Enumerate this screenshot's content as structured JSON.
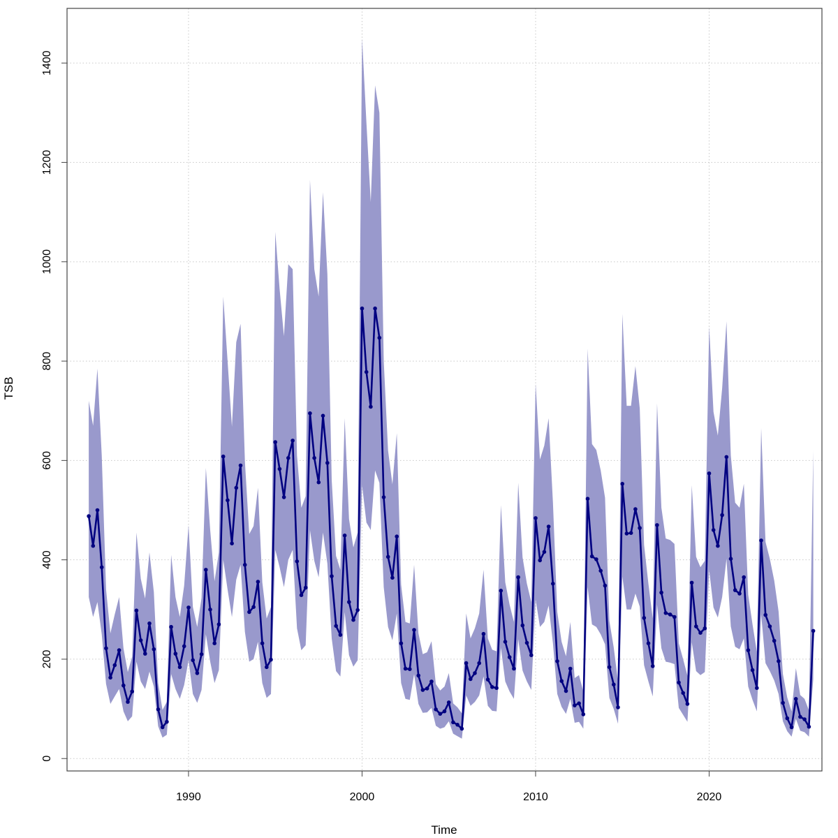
{
  "chart_data": {
    "type": "line",
    "title": "",
    "xlabel": "Time",
    "ylabel": "TSB",
    "xlim": [
      1983.0,
      2026.5
    ],
    "ylim": [
      -25,
      1510
    ],
    "x_ticks": [
      1990,
      2000,
      2010,
      2020
    ],
    "y_ticks": [
      0,
      200,
      400,
      600,
      800,
      1000,
      1200,
      1400
    ],
    "grid": true,
    "colors": {
      "line": "#000080",
      "band": "#9999cc",
      "grid": "#c8c8c8",
      "axis": "#444444"
    },
    "series": [
      {
        "x": [
          1984.25,
          1984.5,
          1984.75,
          1985.0,
          1985.25,
          1985.5,
          1985.75,
          1986.0,
          1986.25,
          1986.5,
          1986.75,
          1987.0,
          1987.25,
          1987.5,
          1987.75,
          1988.0,
          1988.25,
          1988.5,
          1988.75,
          1989.0,
          1989.25,
          1989.5,
          1989.75,
          1990.0,
          1990.25,
          1990.5,
          1990.75,
          1991.0,
          1991.25,
          1991.5,
          1991.75,
          1992.0,
          1992.25,
          1992.5,
          1992.75,
          1993.0,
          1993.25,
          1993.5,
          1993.75,
          1994.0,
          1994.25,
          1994.5,
          1994.75,
          1995.0,
          1995.25,
          1995.5,
          1995.75,
          1996.0,
          1996.25,
          1996.5,
          1996.75,
          1997.0,
          1997.25,
          1997.5,
          1997.75,
          1998.0,
          1998.25,
          1998.5,
          1998.75,
          1999.0,
          1999.25,
          1999.5,
          1999.75,
          2000.0,
          2000.25,
          2000.5,
          2000.75,
          2001.0,
          2001.25,
          2001.5,
          2001.75,
          2002.0,
          2002.25,
          2002.5,
          2002.75,
          2003.0,
          2003.25,
          2003.5,
          2003.75,
          2004.0,
          2004.25,
          2004.5,
          2004.75,
          2005.0,
          2005.25,
          2005.5,
          2005.75,
          2006.0,
          2006.25,
          2006.5,
          2006.75,
          2007.0,
          2007.25,
          2007.5,
          2007.75,
          2008.0,
          2008.25,
          2008.5,
          2008.75,
          2009.0,
          2009.25,
          2009.5,
          2009.75,
          2010.0,
          2010.25,
          2010.5,
          2010.75,
          2011.0,
          2011.25,
          2011.5,
          2011.75,
          2012.0,
          2012.25,
          2012.5,
          2012.75,
          2013.0,
          2013.25,
          2013.5,
          2013.75,
          2014.0,
          2014.25,
          2014.5,
          2014.75,
          2015.0,
          2015.25,
          2015.5,
          2015.75,
          2016.0,
          2016.25,
          2016.5,
          2016.75,
          2017.0,
          2017.25,
          2017.5,
          2017.75,
          2018.0,
          2018.25,
          2018.5,
          2018.75,
          2019.0,
          2019.25,
          2019.5,
          2019.75,
          2020.0,
          2020.25,
          2020.5,
          2020.75,
          2021.0,
          2021.25,
          2021.5,
          2021.75,
          2022.0,
          2022.25,
          2022.5,
          2022.75,
          2023.0,
          2023.25,
          2023.5,
          2023.75,
          2024.0,
          2024.25,
          2024.5,
          2024.75,
          2025.0,
          2025.25,
          2025.5,
          2025.75,
          2026.0
        ],
        "y": [
          488,
          428,
          500,
          385,
          222,
          163,
          188,
          218,
          147,
          114,
          135,
          298,
          238,
          211,
          272,
          220,
          99,
          63,
          74,
          265,
          211,
          184,
          226,
          304,
          198,
          172,
          210,
          380,
          300,
          232,
          270,
          608,
          520,
          433,
          545,
          590,
          390,
          295,
          305,
          356,
          232,
          184,
          199,
          637,
          583,
          526,
          605,
          640,
          397,
          329,
          344,
          695,
          605,
          556,
          690,
          595,
          367,
          267,
          249,
          449,
          315,
          279,
          299,
          906,
          778,
          708,
          906,
          847,
          526,
          406,
          364,
          447,
          232,
          181,
          180,
          259,
          167,
          138,
          141,
          155,
          99,
          90,
          95,
          113,
          73,
          68,
          60,
          192,
          160,
          172,
          192,
          251,
          159,
          144,
          142,
          338,
          235,
          204,
          181,
          365,
          268,
          233,
          208,
          484,
          399,
          416,
          467,
          352,
          196,
          156,
          136,
          181,
          107,
          111,
          89,
          523,
          407,
          401,
          378,
          348,
          184,
          149,
          103,
          553,
          453,
          454,
          502,
          464,
          283,
          232,
          186,
          470,
          334,
          293,
          290,
          285,
          153,
          132,
          110,
          354,
          266,
          253,
          262,
          574,
          460,
          428,
          490,
          607,
          402,
          339,
          332,
          365,
          218,
          178,
          142,
          439,
          289,
          266,
          237,
          196,
          112,
          81,
          63,
          120,
          84,
          79,
          64,
          257
        ],
        "lower": [
          325,
          285,
          315,
          250,
          150,
          110,
          125,
          140,
          95,
          75,
          85,
          195,
          155,
          140,
          175,
          145,
          65,
          42,
          48,
          170,
          140,
          120,
          148,
          198,
          130,
          112,
          138,
          250,
          195,
          152,
          178,
          400,
          340,
          285,
          360,
          390,
          255,
          195,
          200,
          235,
          152,
          122,
          130,
          420,
          385,
          345,
          400,
          420,
          262,
          218,
          228,
          460,
          398,
          365,
          455,
          392,
          242,
          176,
          165,
          295,
          208,
          185,
          198,
          550,
          475,
          460,
          580,
          555,
          345,
          265,
          238,
          292,
          152,
          120,
          118,
          170,
          110,
          92,
          93,
          102,
          66,
          60,
          63,
          75,
          50,
          45,
          40,
          127,
          106,
          114,
          127,
          165,
          106,
          96,
          95,
          223,
          155,
          135,
          120,
          240,
          177,
          155,
          138,
          320,
          265,
          275,
          308,
          232,
          130,
          104,
          90,
          120,
          72,
          74,
          60,
          345,
          270,
          265,
          250,
          230,
          122,
          100,
          70,
          366,
          300,
          300,
          332,
          306,
          188,
          155,
          125,
          310,
          222,
          195,
          193,
          190,
          102,
          88,
          74,
          234,
          176,
          168,
          174,
          380,
          304,
          284,
          325,
          402,
          266,
          225,
          220,
          242,
          145,
          118,
          95,
          290,
          192,
          176,
          157,
          130,
          75,
          55,
          44,
          80,
          56,
          53,
          44,
          160
        ],
        "upper": [
          720,
          670,
          785,
          610,
          340,
          252,
          290,
          325,
          222,
          174,
          205,
          455,
          362,
          322,
          415,
          335,
          152,
          98,
          114,
          410,
          325,
          285,
          348,
          470,
          305,
          265,
          323,
          585,
          460,
          357,
          415,
          930,
          800,
          668,
          838,
          875,
          598,
          452,
          468,
          545,
          355,
          282,
          305,
          1060,
          945,
          850,
          995,
          985,
          610,
          505,
          528,
          1165,
          985,
          930,
          1140,
          975,
          560,
          408,
          380,
          685,
          482,
          425,
          455,
          1450,
          1280,
          1120,
          1355,
          1300,
          800,
          620,
          552,
          655,
          350,
          275,
          272,
          390,
          252,
          210,
          214,
          236,
          150,
          137,
          145,
          172,
          111,
          103,
          91,
          292,
          242,
          262,
          292,
          380,
          242,
          219,
          216,
          510,
          355,
          310,
          275,
          555,
          405,
          352,
          315,
          755,
          602,
          630,
          685,
          515,
          295,
          235,
          206,
          275,
          162,
          168,
          135,
          825,
          633,
          621,
          580,
          525,
          277,
          224,
          155,
          895,
          710,
          710,
          790,
          705,
          430,
          352,
          282,
          715,
          505,
          443,
          440,
          432,
          232,
          200,
          167,
          550,
          406,
          385,
          398,
          870,
          698,
          650,
          745,
          880,
          610,
          515,
          505,
          553,
          330,
          270,
          215,
          665,
          436,
          402,
          358,
          296,
          170,
          123,
          95,
          182,
          128,
          120,
          97,
          620
        ]
      }
    ]
  }
}
